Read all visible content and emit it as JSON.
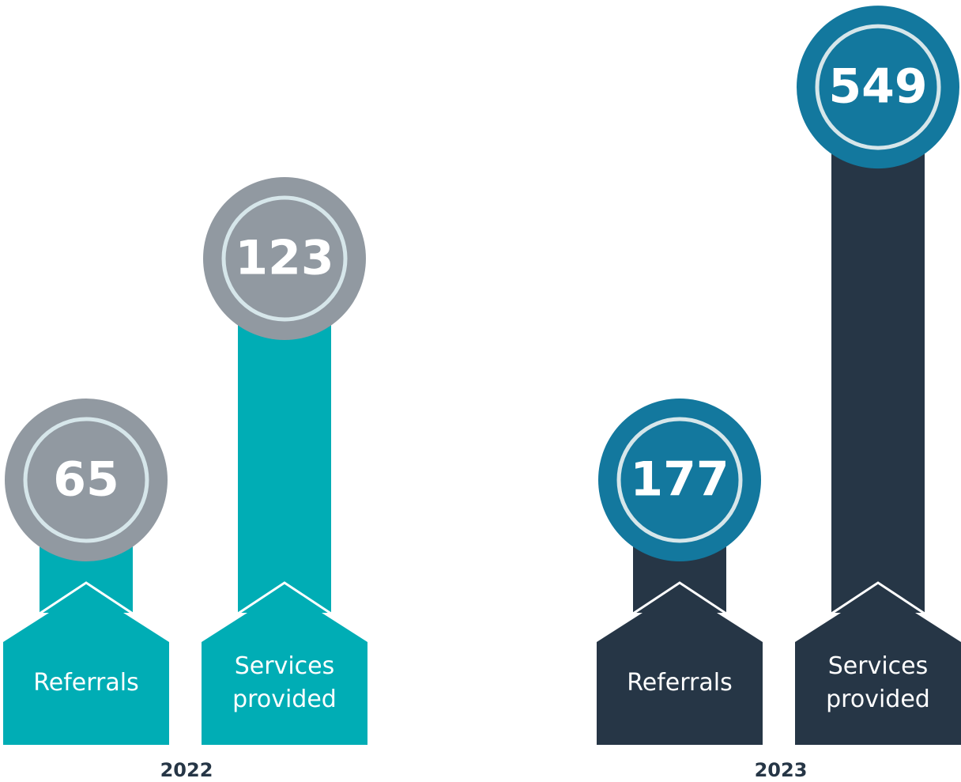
{
  "chart_data": {
    "type": "pictogram-bar",
    "groups": [
      {
        "name": "2022",
        "bar_color": "#00adb5",
        "circle_color": "#9199a1",
        "categories": [
          "Referrals",
          "Services provided"
        ],
        "values": [
          65,
          123
        ]
      },
      {
        "name": "2023",
        "bar_color": "#263646",
        "circle_color": "#13789e",
        "categories": [
          "Referrals",
          "Services provided"
        ],
        "values": [
          177,
          549
        ]
      }
    ],
    "log_scale": true
  }
}
